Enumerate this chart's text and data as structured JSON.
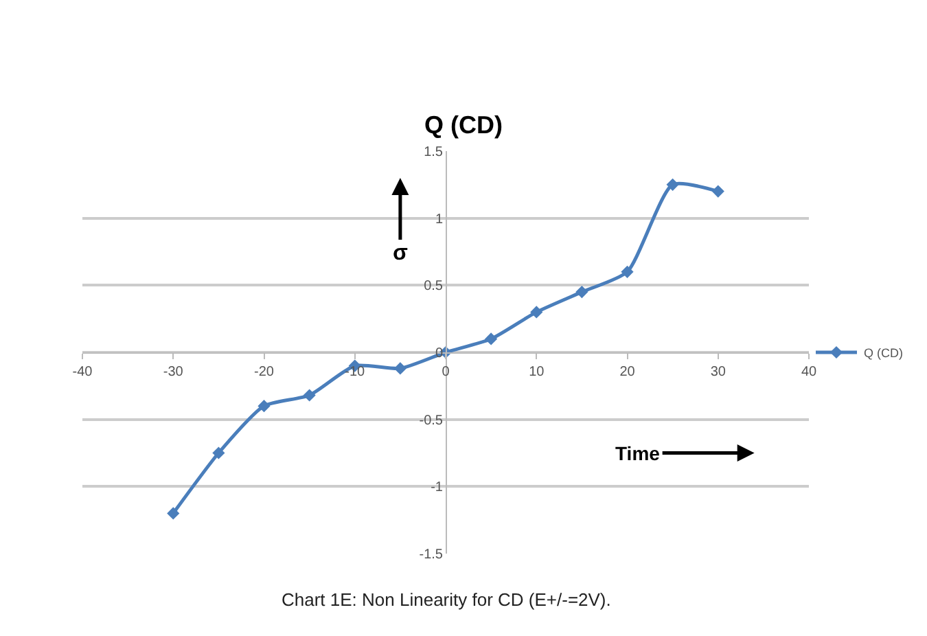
{
  "chart_data": {
    "type": "line",
    "title": "Q (CD)",
    "xlabel": "Time",
    "ylabel": "σ",
    "x": [
      -30,
      -25,
      -20,
      -15,
      -10,
      -5,
      0,
      5,
      10,
      15,
      20,
      25,
      30
    ],
    "series": [
      {
        "name": "Q (CD)",
        "color": "#4a7ebb",
        "values": [
          -1.2,
          -0.75,
          -0.4,
          -0.32,
          -0.1,
          -0.12,
          0,
          0.1,
          0.3,
          0.45,
          0.6,
          1.25,
          1.2
        ]
      }
    ],
    "xlim": [
      -40,
      40
    ],
    "xticks": [
      -40,
      -30,
      -20,
      -10,
      0,
      10,
      20,
      30,
      40
    ],
    "ylim": [
      -1.5,
      1.5
    ],
    "yticks": [
      -1.5,
      -1,
      -0.5,
      0,
      0.5,
      1,
      1.5
    ],
    "grid": "y",
    "legend": "right",
    "marker": "diamond",
    "line_style": "solid",
    "annotations": [
      "Chart 1E: Non Linearity for CD (E+/-=2V)."
    ]
  }
}
